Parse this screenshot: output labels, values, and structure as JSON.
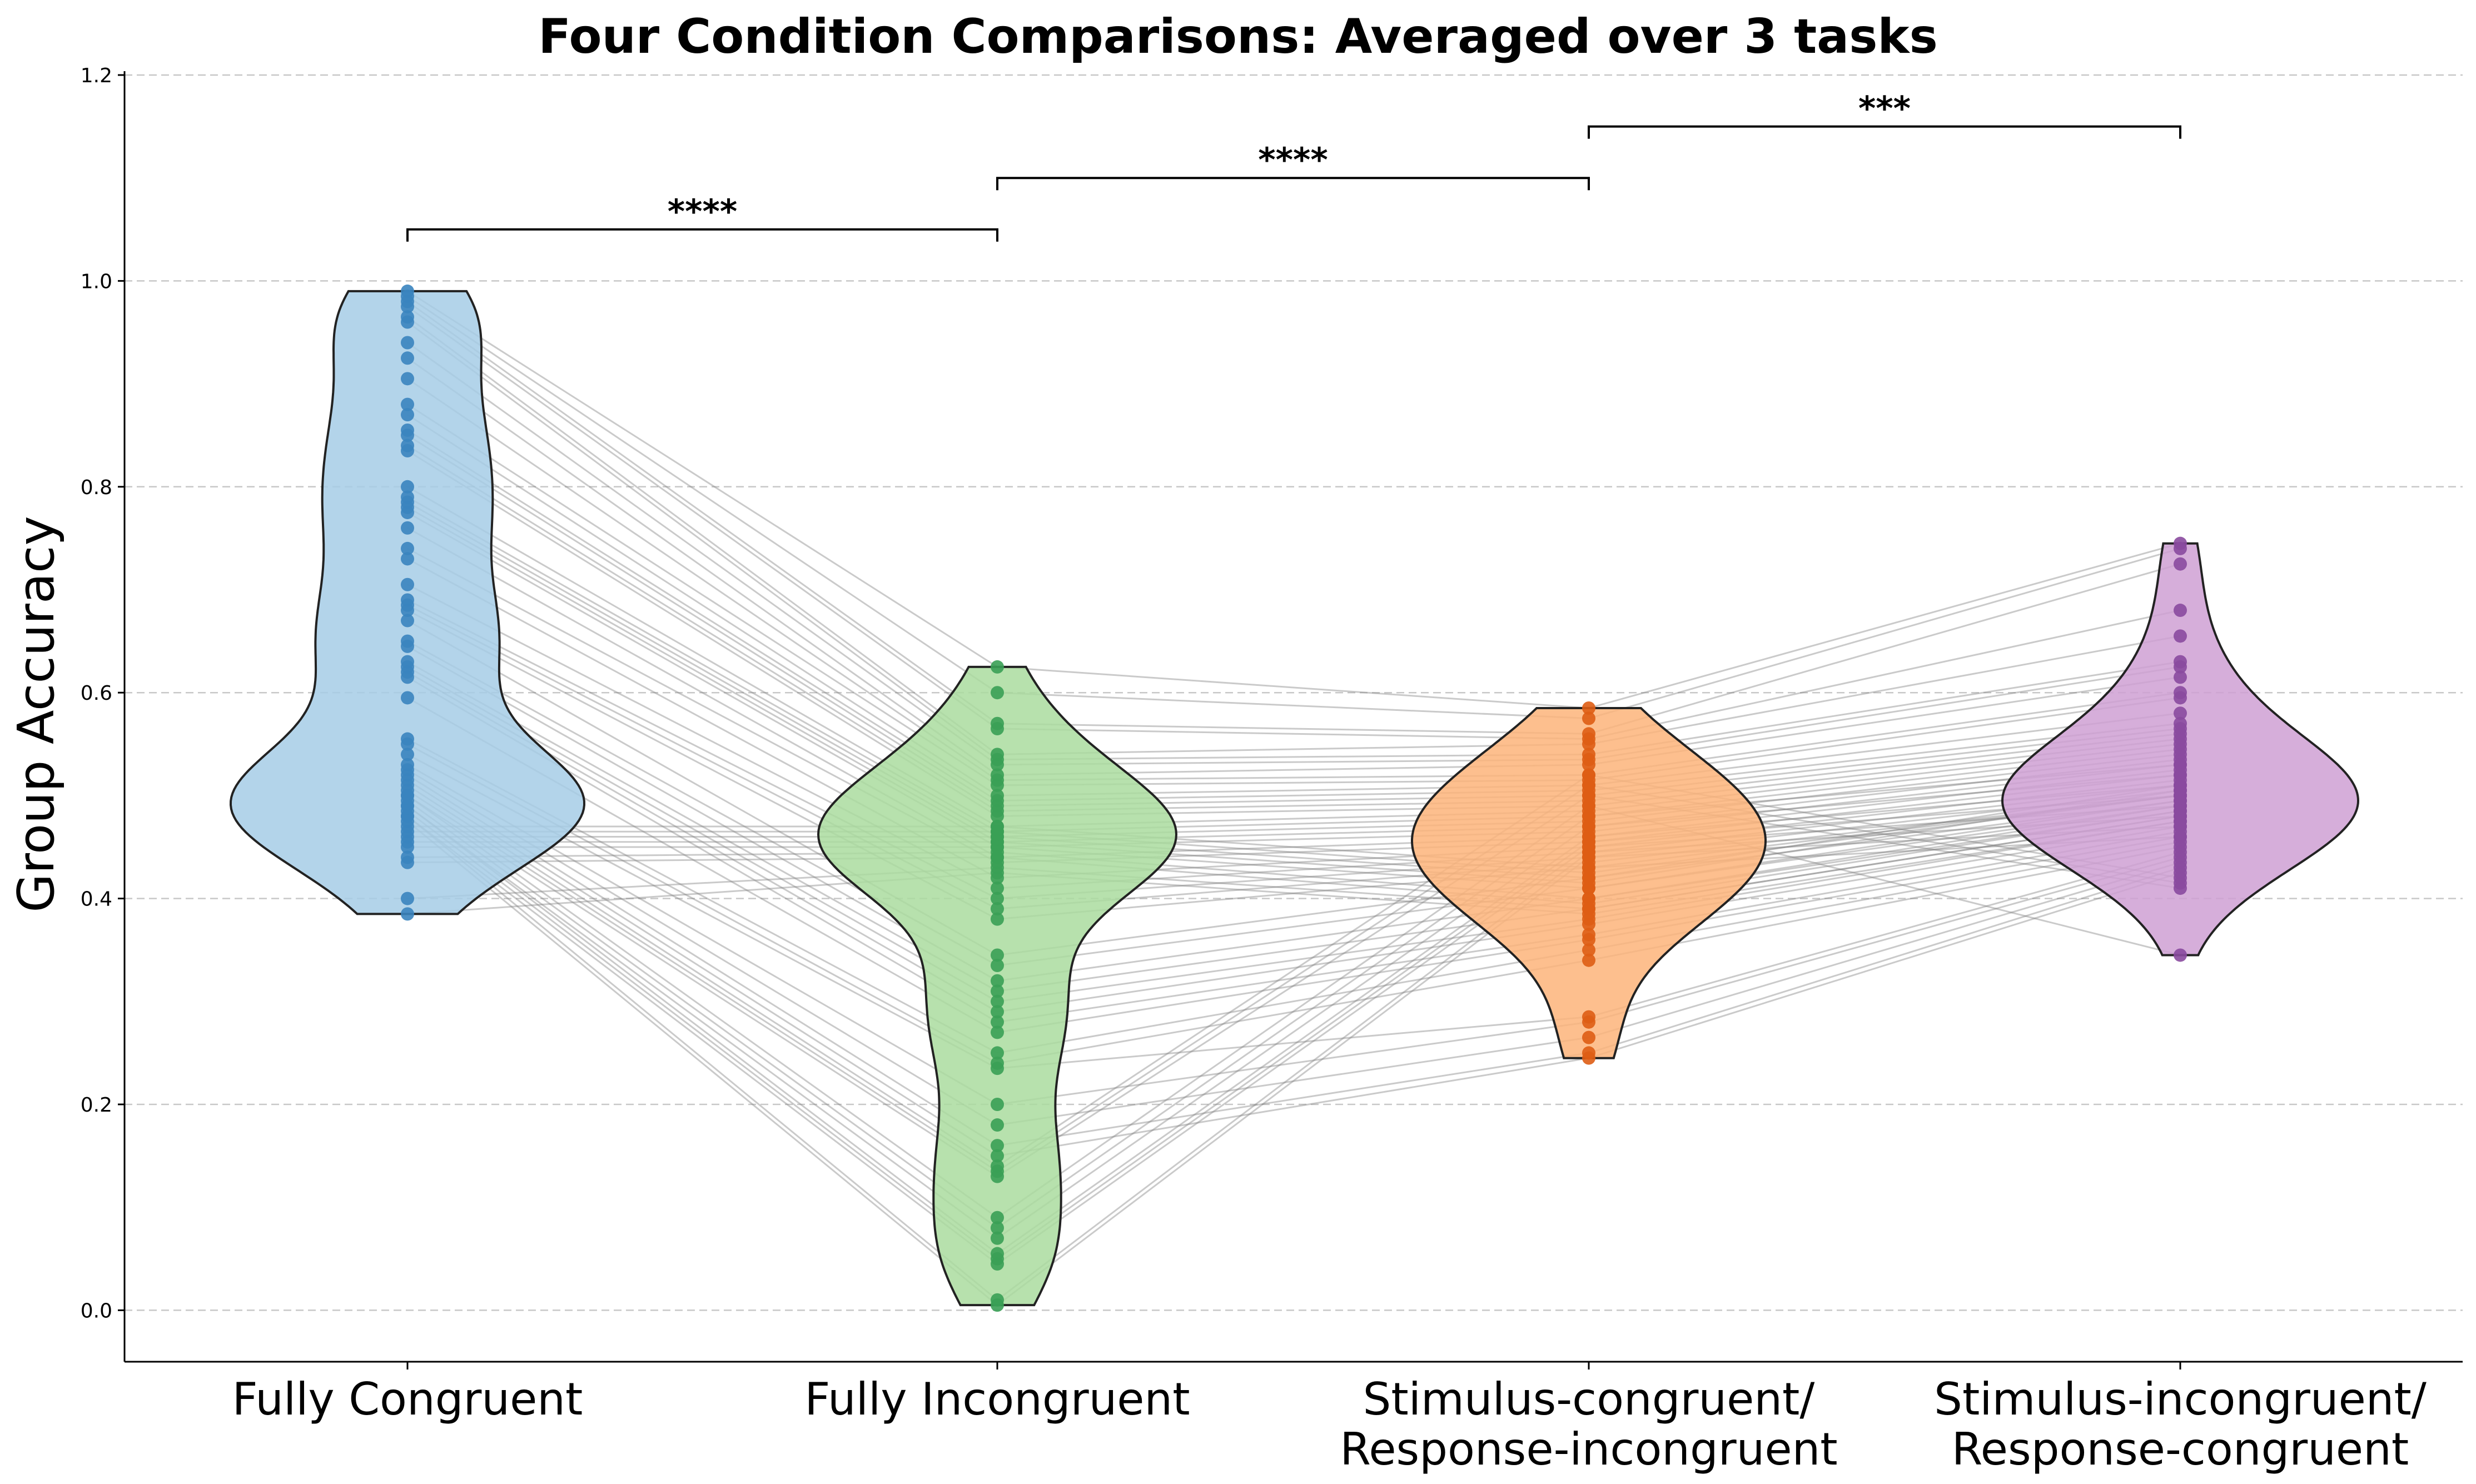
{
  "chart_data": {
    "type": "violin",
    "title": "Four Condition Comparisons: Averaged over 3 tasks",
    "xlabel": "",
    "ylabel": "Group Accuracy",
    "ylim": [
      -0.05,
      1.21
    ],
    "yticks": [
      0.0,
      0.2,
      0.4,
      0.6,
      0.8,
      1.0,
      1.2
    ],
    "ytick_labels": [
      "0.0",
      "0.2",
      "0.4",
      "0.6",
      "0.8",
      "1.0",
      "1.2"
    ],
    "grid": "horizontal dashed",
    "paired_lines": true,
    "categories": [
      {
        "lines": [
          "Fully Congruent"
        ],
        "color": "#a6cde6",
        "point_color": "#3a84bf"
      },
      {
        "lines": [
          "Fully Incongruent"
        ],
        "color": "#aadc9f",
        "point_color": "#3aa055"
      },
      {
        "lines": [
          "Stimulus-congruent/",
          "Response-incongruent"
        ],
        "color": "#fdb47a",
        "point_color": "#de5d14"
      },
      {
        "lines": [
          "Stimulus-incongruent/",
          "Response-congruent"
        ],
        "color": "#cfa0d4",
        "point_color": "#8a4a9e"
      }
    ],
    "series": [
      {
        "values": [
          0.99,
          0.985,
          0.98,
          0.975,
          0.965,
          0.96,
          0.94,
          0.925,
          0.905,
          0.88,
          0.87,
          0.855,
          0.85,
          0.84,
          0.835,
          0.8,
          0.79,
          0.785,
          0.78,
          0.775,
          0.76,
          0.74,
          0.73,
          0.705,
          0.69,
          0.685,
          0.68,
          0.67,
          0.65,
          0.645,
          0.63,
          0.625,
          0.62,
          0.615,
          0.595,
          0.555,
          0.55,
          0.54,
          0.53,
          0.525,
          0.52,
          0.515,
          0.51,
          0.505,
          0.5,
          0.5,
          0.495,
          0.49,
          0.49,
          0.485,
          0.48,
          0.48,
          0.475,
          0.47,
          0.465,
          0.46,
          0.455,
          0.45,
          0.44,
          0.435,
          0.4,
          0.385
        ]
      },
      {
        "values": [
          0.625,
          0.6,
          0.57,
          0.565,
          0.54,
          0.535,
          0.53,
          0.52,
          0.515,
          0.51,
          0.5,
          0.495,
          0.49,
          0.485,
          0.48,
          0.47,
          0.465,
          0.46,
          0.455,
          0.45,
          0.44,
          0.435,
          0.42,
          0.41,
          0.4,
          0.39,
          0.38,
          0.345,
          0.335,
          0.32,
          0.31,
          0.3,
          0.29,
          0.28,
          0.27,
          0.25,
          0.24,
          0.235,
          0.2,
          0.18,
          0.16,
          0.15,
          0.14,
          0.135,
          0.13,
          0.09,
          0.08,
          0.07,
          0.055,
          0.05,
          0.045,
          0.01,
          0.005,
          0.47,
          0.465,
          0.46,
          0.455,
          0.45,
          0.445,
          0.44,
          0.43,
          0.425
        ]
      },
      {
        "values": [
          0.585,
          0.575,
          0.56,
          0.555,
          0.55,
          0.54,
          0.535,
          0.53,
          0.52,
          0.515,
          0.51,
          0.505,
          0.5,
          0.495,
          0.49,
          0.485,
          0.48,
          0.475,
          0.47,
          0.465,
          0.46,
          0.455,
          0.45,
          0.445,
          0.44,
          0.435,
          0.43,
          0.42,
          0.41,
          0.4,
          0.39,
          0.38,
          0.375,
          0.365,
          0.36,
          0.35,
          0.34,
          0.285,
          0.28,
          0.265,
          0.25,
          0.245,
          0.52,
          0.51,
          0.5,
          0.49,
          0.48,
          0.47,
          0.46,
          0.455,
          0.45,
          0.445,
          0.44,
          0.43,
          0.425,
          0.42,
          0.415,
          0.41,
          0.4,
          0.395,
          0.39,
          0.385
        ]
      },
      {
        "values": [
          0.745,
          0.74,
          0.725,
          0.68,
          0.655,
          0.63,
          0.625,
          0.615,
          0.6,
          0.595,
          0.58,
          0.57,
          0.565,
          0.56,
          0.555,
          0.55,
          0.545,
          0.54,
          0.535,
          0.53,
          0.525,
          0.52,
          0.515,
          0.51,
          0.505,
          0.5,
          0.5,
          0.495,
          0.49,
          0.485,
          0.48,
          0.475,
          0.47,
          0.465,
          0.46,
          0.455,
          0.45,
          0.445,
          0.44,
          0.435,
          0.43,
          0.425,
          0.42,
          0.415,
          0.41,
          0.345,
          0.53,
          0.52,
          0.51,
          0.5,
          0.49,
          0.48,
          0.47,
          0.46,
          0.5,
          0.51,
          0.505,
          0.495,
          0.49,
          0.485,
          0.48,
          0.475
        ]
      }
    ],
    "significance": [
      {
        "from": 0,
        "to": 1,
        "y": 1.05,
        "label": "****"
      },
      {
        "from": 1,
        "to": 2,
        "y": 1.1,
        "label": "****"
      },
      {
        "from": 2,
        "to": 3,
        "y": 1.15,
        "label": "***"
      }
    ]
  }
}
